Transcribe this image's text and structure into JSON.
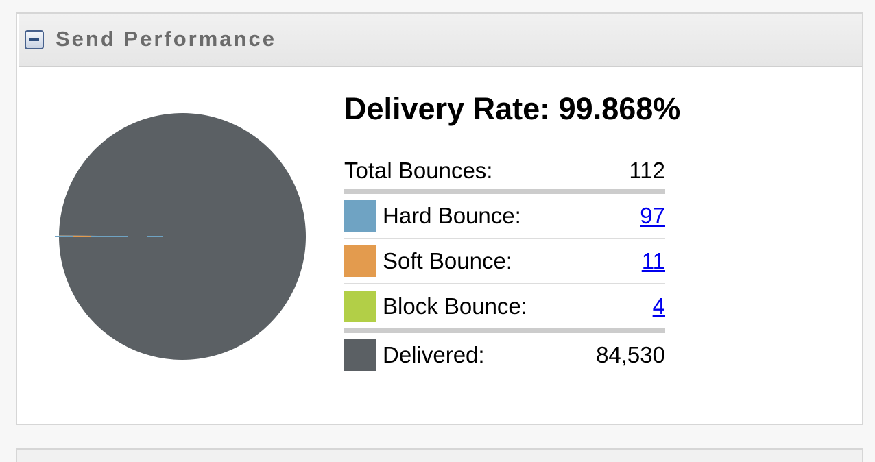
{
  "panel": {
    "title": "Send Performance",
    "collapse_icon": "minus-box-icon"
  },
  "summary": {
    "delivery_rate": "Delivery Rate: 99.868%"
  },
  "stats": {
    "total_bounces": {
      "label": "Total Bounces:",
      "value": "112"
    },
    "hard_bounce": {
      "label": "Hard Bounce:",
      "value": "97",
      "color": "#6fa3c3"
    },
    "soft_bounce": {
      "label": "Soft Bounce:",
      "value": "11",
      "color": "#e39b4e"
    },
    "block_bounce": {
      "label": "Block Bounce:",
      "value": "4",
      "color": "#b2cf47"
    },
    "delivered": {
      "label": "Delivered:",
      "value": "84,530",
      "color": "#5b6064"
    }
  },
  "chart_data": {
    "type": "pie",
    "categories": [
      "Hard Bounce",
      "Soft Bounce",
      "Block Bounce",
      "Delivered"
    ],
    "values": [
      97,
      11,
      4,
      84530
    ],
    "colors": [
      "#6fa3c3",
      "#e39b4e",
      "#b2cf47",
      "#5b6064"
    ]
  }
}
